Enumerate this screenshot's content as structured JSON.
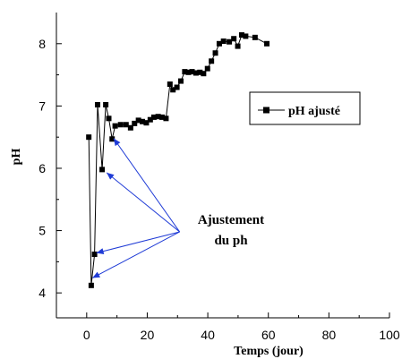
{
  "chart_data": {
    "type": "line",
    "xlabel": "Temps (jour)",
    "ylabel": "pH",
    "xlim": [
      -10,
      100
    ],
    "ylim": [
      3.6,
      8.5
    ],
    "x_ticks": [
      0,
      20,
      40,
      60,
      80,
      100
    ],
    "y_ticks": [
      4,
      5,
      6,
      7,
      8
    ],
    "legend_position": "right",
    "series": [
      {
        "name": "pH ajusté",
        "x": [
          0.7,
          1.5,
          2.6,
          3.6,
          5.1,
          6.3,
          7.3,
          8.4,
          9.4,
          11.2,
          13.0,
          14.5,
          15.8,
          17.1,
          18.4,
          19.7,
          21.0,
          22.2,
          23.6,
          24.9,
          26.2,
          27.5,
          28.5,
          29.8,
          31.1,
          32.4,
          33.6,
          34.8,
          36.1,
          37.4,
          38.6,
          39.9,
          41.2,
          42.5,
          43.8,
          45.2,
          47.1,
          48.6,
          49.9,
          51.2,
          52.5,
          55.6,
          59.5
        ],
        "y": [
          6.5,
          4.12,
          4.62,
          7.02,
          5.98,
          7.02,
          6.8,
          6.47,
          6.68,
          6.7,
          6.7,
          6.65,
          6.72,
          6.77,
          6.75,
          6.73,
          6.78,
          6.82,
          6.83,
          6.82,
          6.8,
          7.35,
          7.26,
          7.3,
          7.4,
          7.55,
          7.54,
          7.55,
          7.53,
          7.54,
          7.52,
          7.6,
          7.72,
          7.85,
          8.0,
          8.04,
          8.03,
          8.08,
          7.96,
          8.14,
          8.12,
          8.1,
          8.0
        ],
        "color": "#000000"
      }
    ],
    "annotations": [
      {
        "text_line1": "Ajustement",
        "text_line2": "du ph",
        "arrow_color": "#1f3bd6",
        "arrow_from": [
          30.7,
          4.98
        ],
        "arrow_targets": [
          [
            8.9,
            6.48
          ],
          [
            6.6,
            5.93
          ],
          [
            3.2,
            4.64
          ],
          [
            1.9,
            4.24
          ]
        ]
      }
    ]
  }
}
